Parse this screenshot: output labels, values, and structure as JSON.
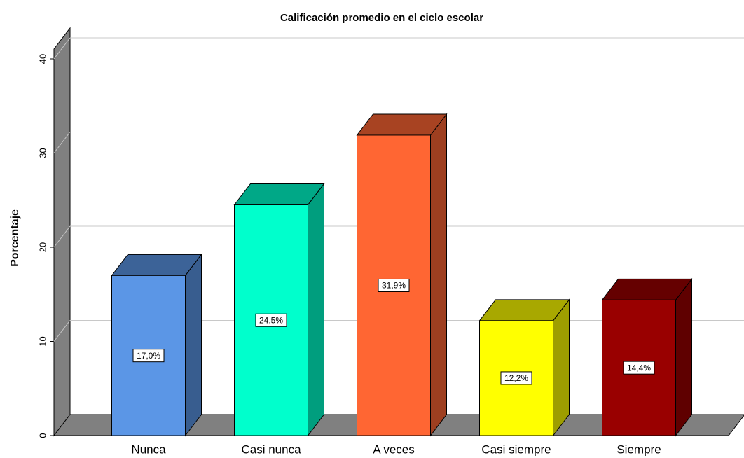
{
  "chart_data": {
    "type": "bar3d",
    "title": "Calificación promedio en el ciclo escolar",
    "y_label": "Porcentaje",
    "categories": [
      "Nunca",
      "Casi nunca",
      "A veces",
      "Casi siempre",
      "Siempre"
    ],
    "values": [
      17.0,
      24.5,
      31.9,
      12.2,
      14.4
    ],
    "value_labels": [
      "17,0%",
      "24,5%",
      "31,9%",
      "12,2%",
      "14,4%"
    ],
    "colors": [
      "#5b96e6",
      "#00ffcc",
      "#ff6633",
      "#ffff00",
      "#990000"
    ],
    "ylim": [
      0,
      40
    ],
    "yticks": [
      0,
      10,
      20,
      30,
      40
    ],
    "grid": true
  }
}
